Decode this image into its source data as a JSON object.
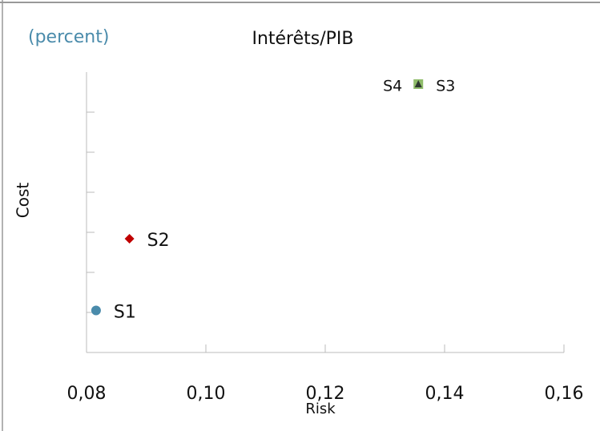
{
  "chart_data": {
    "type": "scatter",
    "title": "Intérêts/PIB",
    "subtitle": "(percent)",
    "x_label": "Risk",
    "y_label": "Cost",
    "xlim": [
      0.08,
      0.16
    ],
    "xticks": [
      {
        "value": 0.08,
        "label": "0,08"
      },
      {
        "value": 0.1,
        "label": "0,10"
      },
      {
        "value": 0.12,
        "label": "0,12"
      },
      {
        "value": 0.14,
        "label": "0,14"
      },
      {
        "value": 0.16,
        "label": "0,16"
      }
    ],
    "ylim": [
      0,
      7
    ],
    "yticks": [
      1,
      2,
      3,
      4,
      5,
      6
    ],
    "series": [
      {
        "name": "S1",
        "color": "#4a8bab",
        "marker": "circle",
        "x": [
          0.0816
        ],
        "values": [
          1.05
        ]
      },
      {
        "name": "S2",
        "color": "#c00000",
        "marker": "diamond",
        "x": [
          0.0872
        ],
        "values": [
          2.84
        ]
      },
      {
        "name": "S3",
        "color": "#8fbc6a",
        "marker": "square",
        "x": [
          0.1356
        ],
        "values": [
          6.7
        ]
      },
      {
        "name": "S4",
        "color": "#2f3a2f",
        "marker": "triangle",
        "x": [
          0.1356
        ],
        "values": [
          6.7
        ]
      }
    ]
  }
}
